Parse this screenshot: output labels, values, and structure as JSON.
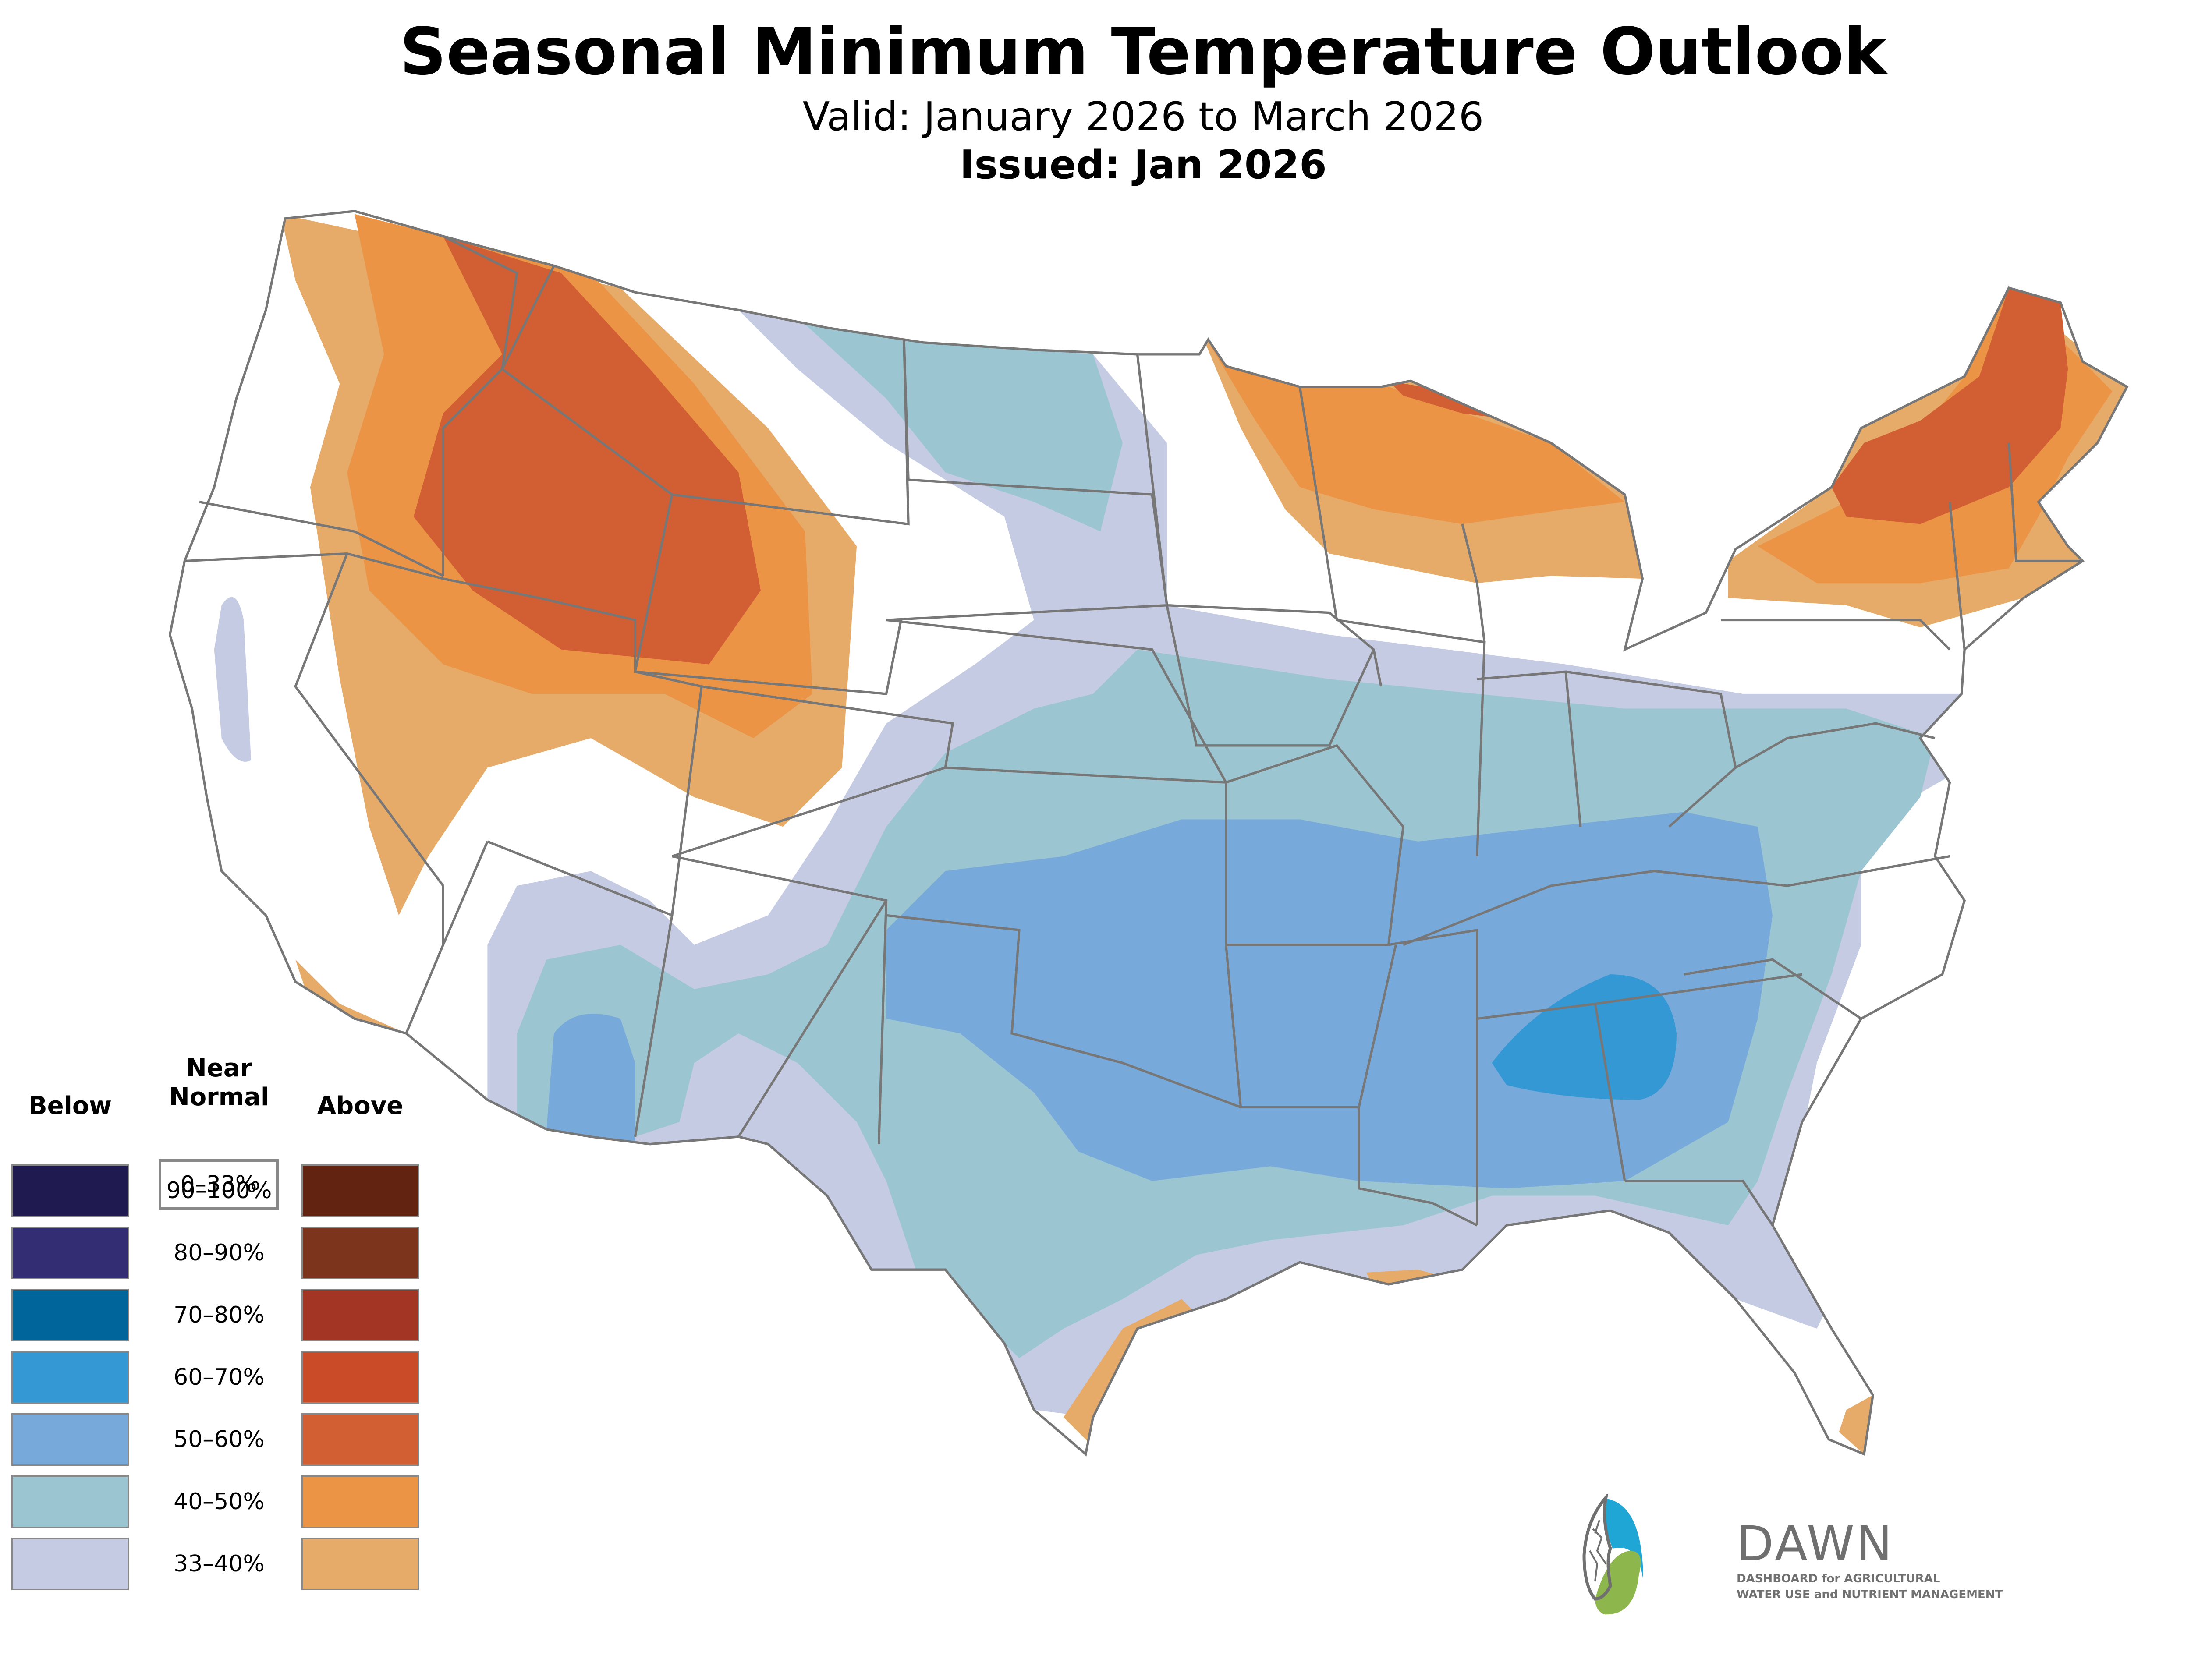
{
  "header": {
    "title": "Seasonal Minimum Temperature Outlook",
    "valid": "Valid: January 2026 to March 2026",
    "issued": "Issued: Jan 2026"
  },
  "legend": {
    "near_normal_title": "Near Normal",
    "near_normal_range": "0–33%",
    "below_title": "Below",
    "above_title": "Above",
    "rows": [
      {
        "label": "90–100%",
        "below_color": "#1f1a4f",
        "above_color": "#622411"
      },
      {
        "label": "80–90%",
        "below_color": "#332d73",
        "above_color": "#7d341c"
      },
      {
        "label": "70–80%",
        "below_color": "#00659b",
        "above_color": "#a33525"
      },
      {
        "label": "60–70%",
        "below_color": "#3398d3",
        "above_color": "#c94b28"
      },
      {
        "label": "50–60%",
        "below_color": "#77aada",
        "above_color": "#d25f33"
      },
      {
        "label": "40–50%",
        "below_color": "#9bc5d1",
        "above_color": "#eb9446"
      },
      {
        "label": "33–40%",
        "below_color": "#c4cbe3",
        "above_color": "#e6aa69"
      }
    ]
  },
  "logo": {
    "name": "DAWN",
    "tagline_line1": "DASHBOARD for AGRICULTURAL",
    "tagline_line2": "WATER USE and NUTRIENT MANAGEMENT",
    "colors": {
      "blue": "#1fa6d4",
      "green": "#8db64c",
      "gray": "#707070"
    }
  },
  "map": {
    "region": "Contiguous United States",
    "colors": {
      "above_33_40": "#e6aa69",
      "above_40_50": "#eb9446",
      "above_50_60": "#d25f33",
      "above_60_70": "#c94b28",
      "below_33_40": "#c4cbe3",
      "below_40_50": "#9bc5d1",
      "below_50_60": "#77aada",
      "below_60_70": "#3398d3",
      "boundary": "#777777"
    }
  }
}
